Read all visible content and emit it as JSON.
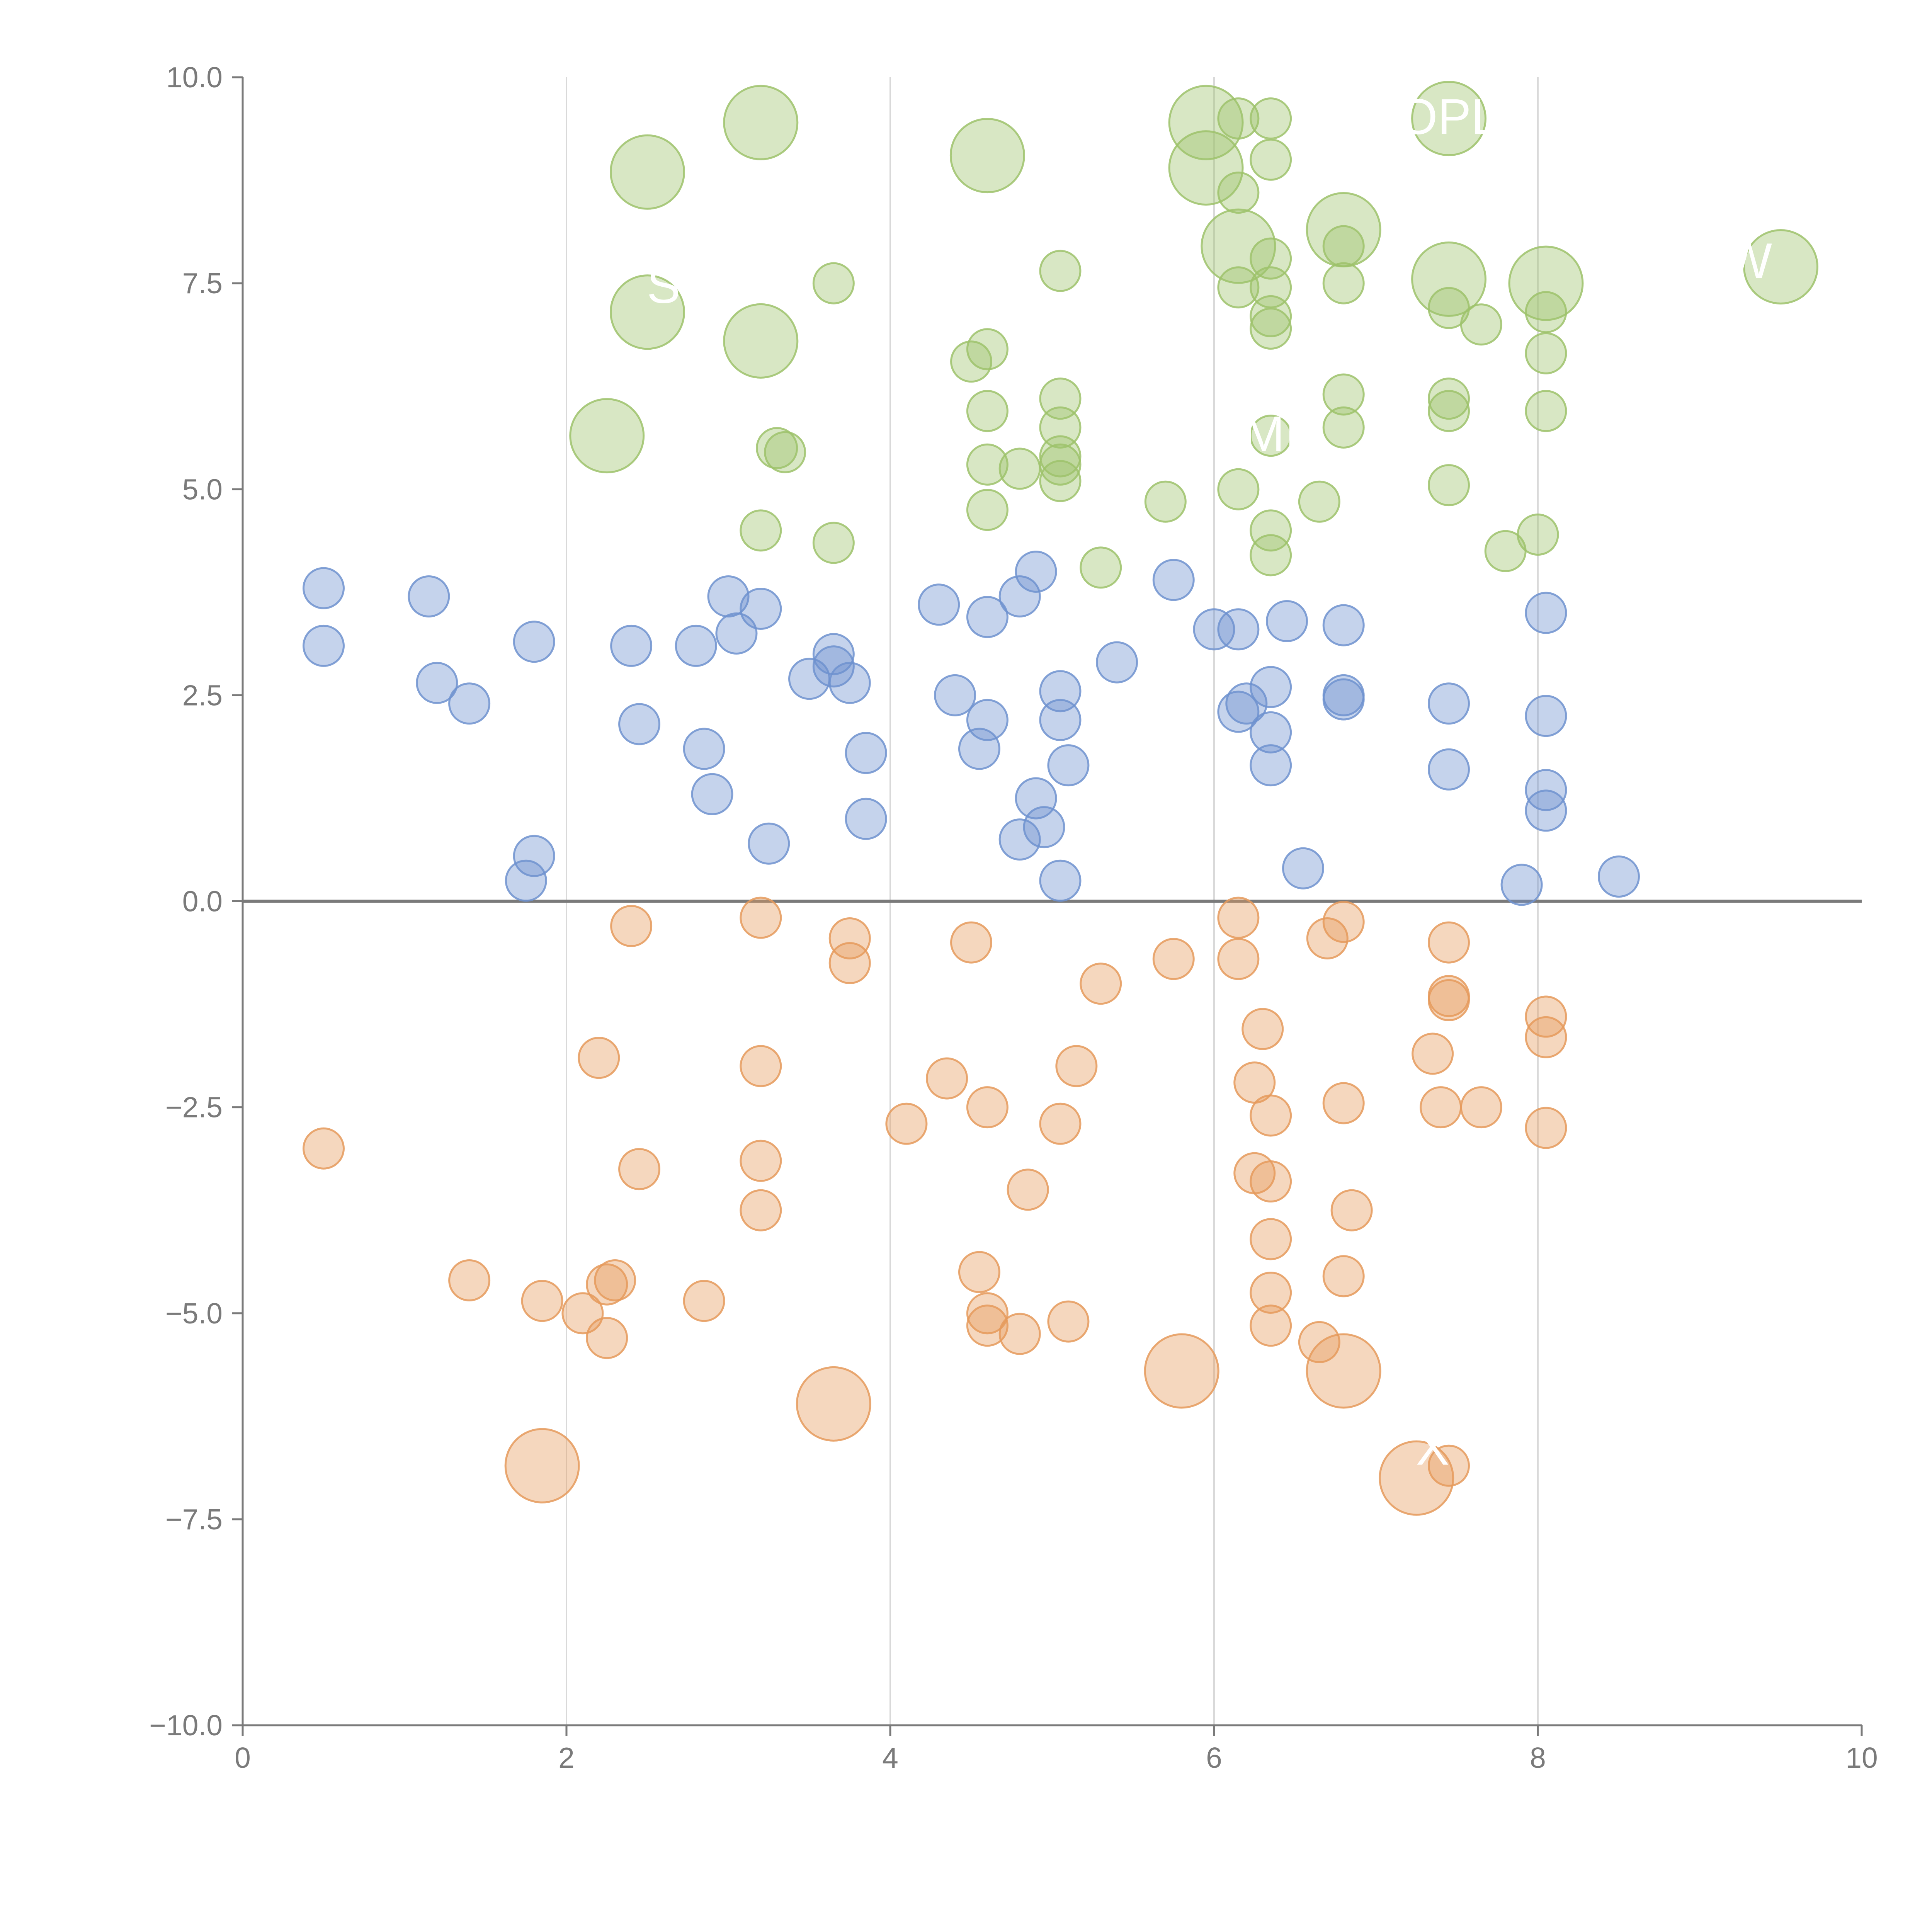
{
  "chart_data": {
    "type": "scatter",
    "title": "",
    "xlabel": "",
    "ylabel": "",
    "xlim": [
      0,
      10
    ],
    "ylim": [
      -10,
      10
    ],
    "grid": "vertical",
    "x_ticks": [
      "0",
      "2",
      "4",
      "6",
      "8",
      "10"
    ],
    "y_ticks": [
      "10.0",
      "7.5",
      "5.0",
      "2.5",
      "0.0",
      "−2.5",
      "−5.0",
      "−7.5",
      "−10.0"
    ],
    "colors": {
      "green": "#9dc26b",
      "blue": "#6f92cf",
      "orange": "#e59a5c",
      "axis": "#7a7a7a",
      "grid": "#d9d9d9"
    },
    "series": [
      {
        "color_key": "green",
        "points": [
          [
            2.5,
            8.85,
            1
          ],
          [
            3.2,
            9.45,
            1
          ],
          [
            4.6,
            9.05,
            1
          ],
          [
            5.95,
            9.45,
            1
          ],
          [
            5.95,
            8.9,
            1
          ],
          [
            6.15,
            9.5,
            0
          ],
          [
            6.35,
            9.5,
            0
          ],
          [
            6.35,
            9.0,
            0
          ],
          [
            6.15,
            8.6,
            0
          ],
          [
            6.15,
            7.95,
            1
          ],
          [
            6.8,
            8.15,
            1
          ],
          [
            7.45,
            9.5,
            1
          ],
          [
            2.5,
            7.15,
            1
          ],
          [
            3.2,
            6.8,
            1
          ],
          [
            3.65,
            7.5,
            0
          ],
          [
            5.05,
            7.65,
            0
          ],
          [
            6.15,
            7.45,
            0
          ],
          [
            6.35,
            7.45,
            0
          ],
          [
            6.35,
            7.8,
            0
          ],
          [
            6.35,
            7.1,
            0
          ],
          [
            6.35,
            6.95,
            0
          ],
          [
            6.8,
            7.95,
            0
          ],
          [
            6.8,
            7.5,
            0
          ],
          [
            7.45,
            7.55,
            1
          ],
          [
            7.45,
            7.2,
            0
          ],
          [
            7.65,
            7.0,
            0
          ],
          [
            8.05,
            7.5,
            1
          ],
          [
            8.05,
            7.15,
            0
          ],
          [
            9.5,
            7.7,
            1
          ],
          [
            2.25,
            5.65,
            1
          ],
          [
            3.3,
            5.5,
            0
          ],
          [
            3.35,
            5.45,
            0
          ],
          [
            4.5,
            6.55,
            0
          ],
          [
            4.6,
            6.7,
            0
          ],
          [
            4.6,
            5.95,
            0
          ],
          [
            4.6,
            5.3,
            0
          ],
          [
            4.8,
            5.25,
            0
          ],
          [
            5.05,
            6.1,
            0
          ],
          [
            5.05,
            5.75,
            0
          ],
          [
            5.05,
            5.3,
            0
          ],
          [
            5.05,
            5.1,
            0
          ],
          [
            5.05,
            5.4,
            0
          ],
          [
            6.35,
            5.65,
            0
          ],
          [
            6.8,
            6.15,
            0
          ],
          [
            6.8,
            5.75,
            0
          ],
          [
            7.45,
            6.1,
            0
          ],
          [
            7.45,
            5.95,
            0
          ],
          [
            7.45,
            5.05,
            0
          ],
          [
            8.05,
            6.65,
            0
          ],
          [
            8.05,
            5.95,
            0
          ],
          [
            3.2,
            4.5,
            0
          ],
          [
            3.65,
            4.35,
            0
          ],
          [
            4.6,
            4.75,
            0
          ],
          [
            5.3,
            4.05,
            0
          ],
          [
            5.7,
            4.85,
            0
          ],
          [
            6.15,
            5.0,
            0
          ],
          [
            6.35,
            4.5,
            0
          ],
          [
            6.35,
            4.2,
            0
          ],
          [
            6.65,
            4.85,
            0
          ],
          [
            7.8,
            4.25,
            0
          ],
          [
            8.0,
            4.45,
            0
          ]
        ]
      },
      {
        "color_key": "blue",
        "points": [
          [
            0.5,
            3.8,
            0
          ],
          [
            0.5,
            3.1,
            0
          ],
          [
            1.15,
            3.7,
            0
          ],
          [
            1.2,
            2.65,
            0
          ],
          [
            1.4,
            2.4,
            0
          ],
          [
            1.8,
            3.15,
            0
          ],
          [
            1.8,
            0.55,
            0
          ],
          [
            1.75,
            0.25,
            0
          ],
          [
            2.4,
            3.1,
            0
          ],
          [
            2.45,
            2.15,
            0
          ],
          [
            2.8,
            3.1,
            0
          ],
          [
            2.85,
            1.85,
            0
          ],
          [
            2.9,
            1.3,
            0
          ],
          [
            3.0,
            3.7,
            0
          ],
          [
            3.05,
            3.25,
            0
          ],
          [
            3.2,
            3.55,
            0
          ],
          [
            3.25,
            0.7,
            0
          ],
          [
            3.5,
            2.7,
            0
          ],
          [
            3.65,
            3.0,
            0
          ],
          [
            3.65,
            2.85,
            0
          ],
          [
            3.75,
            2.65,
            0
          ],
          [
            3.85,
            1.8,
            0
          ],
          [
            3.85,
            1.0,
            0
          ],
          [
            4.3,
            3.6,
            0
          ],
          [
            4.4,
            2.5,
            0
          ],
          [
            4.55,
            1.85,
            0
          ],
          [
            4.6,
            2.2,
            0
          ],
          [
            4.6,
            3.45,
            0
          ],
          [
            4.8,
            3.7,
            0
          ],
          [
            4.8,
            0.75,
            0
          ],
          [
            4.9,
            4.0,
            0
          ],
          [
            4.9,
            1.25,
            0
          ],
          [
            4.95,
            0.9,
            0
          ],
          [
            5.05,
            2.55,
            0
          ],
          [
            5.05,
            2.2,
            0
          ],
          [
            5.05,
            0.25,
            0
          ],
          [
            5.1,
            1.65,
            0
          ],
          [
            5.4,
            2.9,
            0
          ],
          [
            5.75,
            3.9,
            0
          ],
          [
            6.0,
            3.3,
            0
          ],
          [
            6.15,
            3.3,
            0
          ],
          [
            6.15,
            2.3,
            0
          ],
          [
            6.2,
            2.4,
            0
          ],
          [
            6.35,
            2.6,
            0
          ],
          [
            6.35,
            2.05,
            0
          ],
          [
            6.35,
            1.65,
            0
          ],
          [
            6.45,
            3.4,
            0
          ],
          [
            6.55,
            0.4,
            0
          ],
          [
            6.8,
            3.35,
            0
          ],
          [
            6.8,
            2.5,
            0
          ],
          [
            6.8,
            2.45,
            0
          ],
          [
            7.45,
            2.4,
            0
          ],
          [
            7.45,
            1.6,
            0
          ],
          [
            7.9,
            0.2,
            0
          ],
          [
            8.05,
            3.5,
            0
          ],
          [
            8.05,
            2.25,
            0
          ],
          [
            8.05,
            1.35,
            0
          ],
          [
            8.05,
            1.1,
            0
          ],
          [
            8.5,
            0.3,
            0
          ]
        ]
      },
      {
        "color_key": "orange",
        "points": [
          [
            0.5,
            -3.0,
            0
          ],
          [
            1.4,
            -4.6,
            0
          ],
          [
            1.85,
            -4.85,
            0
          ],
          [
            1.85,
            -6.85,
            1
          ],
          [
            2.1,
            -5.0,
            0
          ],
          [
            2.2,
            -1.9,
            0
          ],
          [
            2.25,
            -4.65,
            0
          ],
          [
            2.25,
            -5.3,
            0
          ],
          [
            2.3,
            -4.6,
            0
          ],
          [
            2.4,
            -0.3,
            0
          ],
          [
            2.45,
            -3.25,
            0
          ],
          [
            2.85,
            -4.85,
            0
          ],
          [
            3.2,
            -0.2,
            0
          ],
          [
            3.2,
            -2.0,
            0
          ],
          [
            3.2,
            -3.15,
            0
          ],
          [
            3.2,
            -3.75,
            0
          ],
          [
            3.65,
            -6.1,
            1
          ],
          [
            3.75,
            -0.45,
            0
          ],
          [
            3.75,
            -0.75,
            0
          ],
          [
            4.1,
            -2.7,
            0
          ],
          [
            4.35,
            -2.15,
            0
          ],
          [
            4.5,
            -0.5,
            0
          ],
          [
            4.55,
            -4.5,
            0
          ],
          [
            4.6,
            -2.5,
            0
          ],
          [
            4.6,
            -5.0,
            0
          ],
          [
            4.6,
            -5.15,
            0
          ],
          [
            4.8,
            -5.25,
            0
          ],
          [
            4.85,
            -3.5,
            0
          ],
          [
            5.05,
            -2.7,
            0
          ],
          [
            5.1,
            -5.1,
            0
          ],
          [
            5.15,
            -2.0,
            0
          ],
          [
            5.3,
            -1.0,
            0
          ],
          [
            5.75,
            -0.7,
            0
          ],
          [
            5.8,
            -5.7,
            1
          ],
          [
            6.15,
            -0.2,
            0
          ],
          [
            6.15,
            -0.7,
            0
          ],
          [
            6.3,
            -1.55,
            0
          ],
          [
            6.25,
            -2.2,
            0
          ],
          [
            6.25,
            -3.3,
            0
          ],
          [
            6.35,
            -2.6,
            0
          ],
          [
            6.35,
            -3.4,
            0
          ],
          [
            6.35,
            -4.1,
            0
          ],
          [
            6.35,
            -4.75,
            0
          ],
          [
            6.35,
            -5.15,
            0
          ],
          [
            6.65,
            -5.35,
            0
          ],
          [
            6.7,
            -0.45,
            0
          ],
          [
            6.8,
            -0.25,
            0
          ],
          [
            6.8,
            -2.45,
            0
          ],
          [
            6.8,
            -4.55,
            0
          ],
          [
            6.8,
            -5.7,
            1
          ],
          [
            6.85,
            -3.75,
            0
          ],
          [
            7.25,
            -7.0,
            1
          ],
          [
            7.35,
            -1.85,
            0
          ],
          [
            7.4,
            -2.5,
            0
          ],
          [
            7.45,
            -0.5,
            0
          ],
          [
            7.45,
            -1.15,
            0
          ],
          [
            7.45,
            -1.2,
            0
          ],
          [
            7.45,
            -6.85,
            0
          ],
          [
            7.65,
            -2.5,
            0
          ],
          [
            8.05,
            -1.4,
            0
          ],
          [
            8.05,
            -1.65,
            0
          ],
          [
            8.05,
            -2.75,
            0
          ]
        ]
      }
    ],
    "annotations": [
      {
        "text": "OPL",
        "x": 7.45,
        "y": 9.5,
        "color_key": "label"
      },
      {
        "text": "S",
        "x": 2.6,
        "y": 7.45,
        "color_key": "label"
      },
      {
        "text": "MI",
        "x": 6.35,
        "y": 5.65,
        "color_key": "label"
      },
      {
        "text": "W",
        "x": 9.3,
        "y": 7.75,
        "color_key": "label"
      },
      {
        "text": "X",
        "x": 7.35,
        "y": -6.65,
        "color_key": "label"
      }
    ]
  }
}
